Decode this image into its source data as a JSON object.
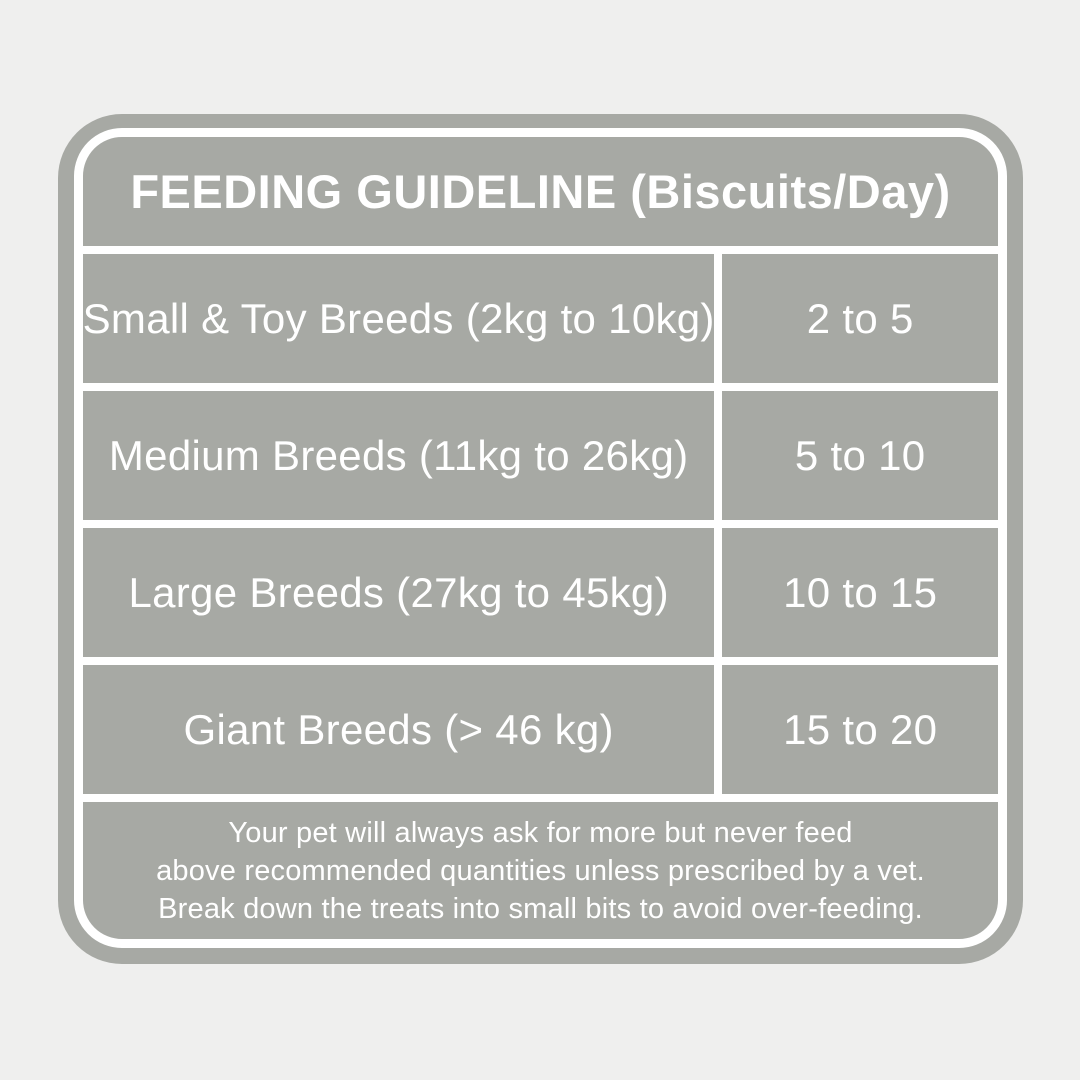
{
  "page": {
    "background_color": "#efefee"
  },
  "card": {
    "background_color": "#a7a9a4",
    "border_color": "#ffffff",
    "text_color": "#ffffff",
    "title": "FEEDING GUIDELINE (Biscuits/Day)",
    "table": {
      "rows": [
        {
          "breed": "Small & Toy Breeds (2kg to 10kg)",
          "quantity": "2 to 5"
        },
        {
          "breed": "Medium Breeds (11kg to 26kg)",
          "quantity": "5 to 10"
        },
        {
          "breed": "Large Breeds (27kg to 45kg)",
          "quantity": "10 to 15"
        },
        {
          "breed": "Giant Breeds (> 46 kg)",
          "quantity": "15 to 20"
        }
      ]
    },
    "footer_lines": [
      "Your pet will always ask for more but never feed",
      "above recommended quantities unless prescribed by a vet.",
      "Break down the treats into small bits to avoid over-feeding."
    ]
  }
}
